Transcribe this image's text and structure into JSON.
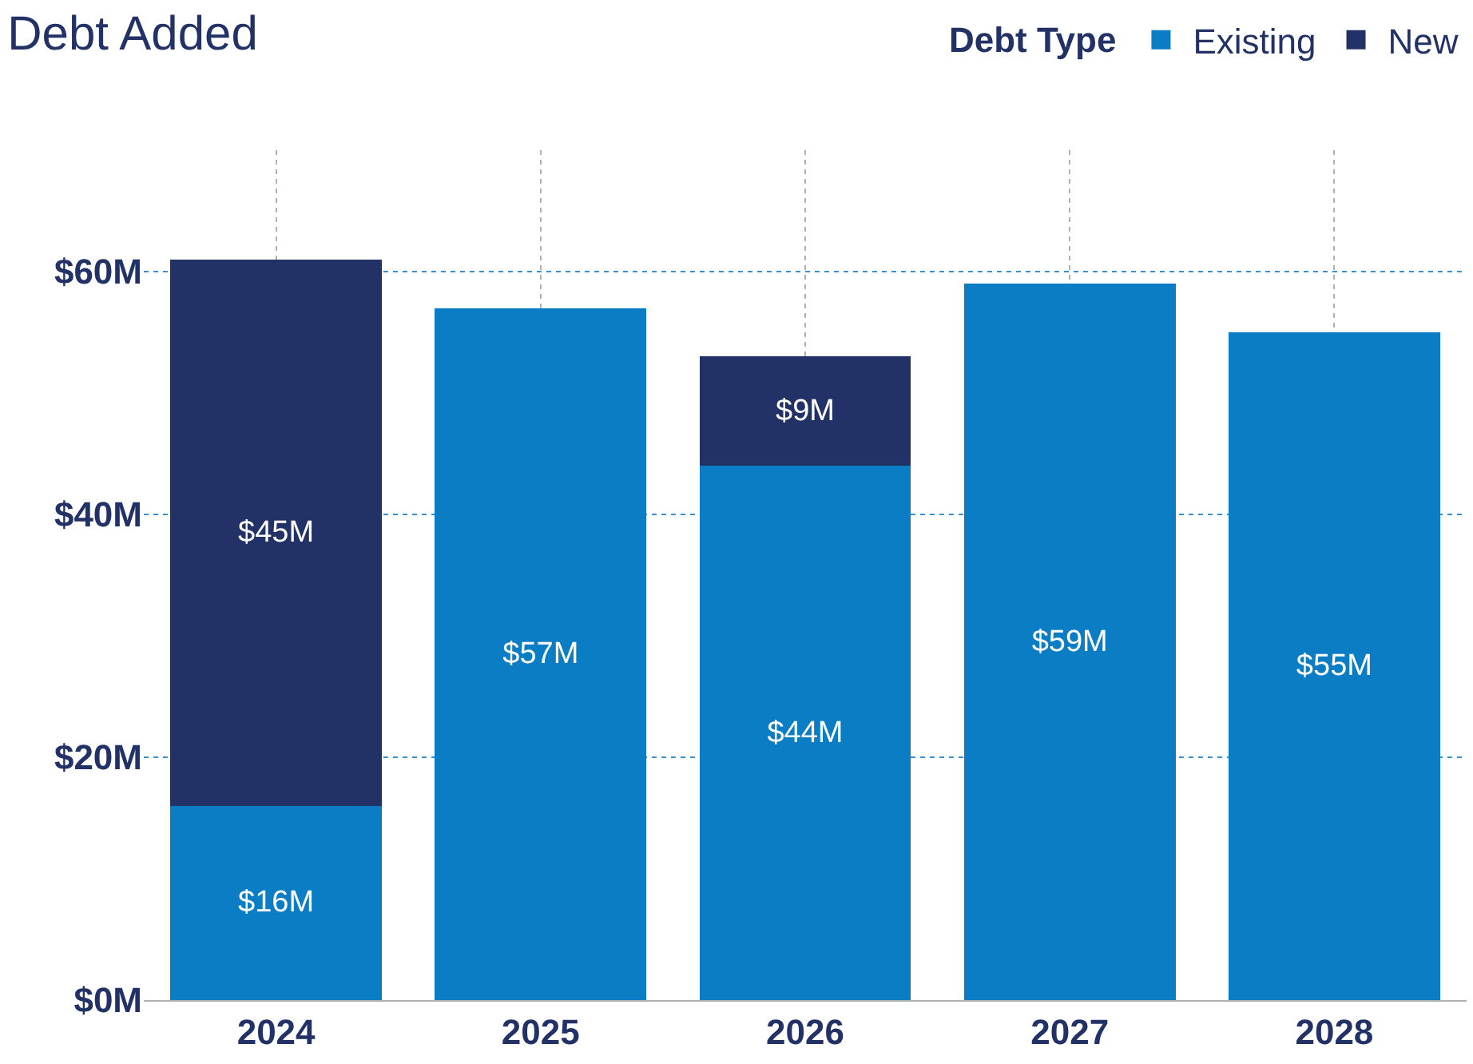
{
  "chart_data": {
    "type": "bar",
    "title": "Debt Added",
    "legend_title": "Debt Type",
    "categories": [
      "2024",
      "2025",
      "2026",
      "2027",
      "2028"
    ],
    "stacked": true,
    "series": [
      {
        "name": "Existing",
        "color": "#0a7dc4",
        "values": [
          16,
          57,
          44,
          59,
          55
        ],
        "value_labels": [
          "$16M",
          "$57M",
          "$44M",
          "$59M",
          "$55M"
        ]
      },
      {
        "name": "New",
        "color": "#233266",
        "values": [
          45,
          null,
          9,
          null,
          null
        ],
        "value_labels": [
          "$45M",
          null,
          "$9M",
          null,
          null
        ]
      }
    ],
    "ylim": [
      0,
      70
    ],
    "yticks": [
      {
        "value": 0,
        "label": "$0M"
      },
      {
        "value": 20,
        "label": "$20M"
      },
      {
        "value": 40,
        "label": "$40M"
      },
      {
        "value": 60,
        "label": "$60M"
      }
    ],
    "grid": true,
    "legend": "top right"
  }
}
